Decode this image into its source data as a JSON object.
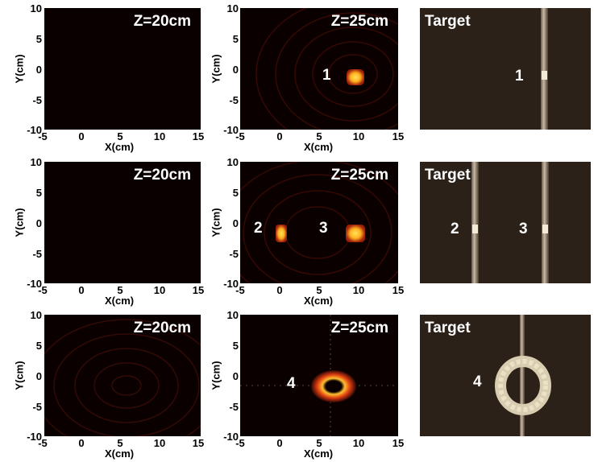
{
  "rows": [
    {
      "panels": [
        {
          "title": "Z=20cm",
          "xlabel": "X(cm)",
          "ylabel": "Y(cm)",
          "xticks": [
            "-5",
            "0",
            "5",
            "10",
            "15"
          ],
          "yticks": [
            "10",
            "5",
            "0",
            "-5",
            "-10"
          ],
          "markers": []
        },
        {
          "title": "Z=25cm",
          "xlabel": "X(cm)",
          "ylabel": "Y(cm)",
          "xticks": [
            "-5",
            "0",
            "5",
            "10",
            "15"
          ],
          "yticks": [
            "10",
            "5",
            "0",
            "-5",
            "-10"
          ],
          "markers": [
            {
              "label": "1"
            }
          ]
        }
      ],
      "target": {
        "title": "Target",
        "markers": [
          {
            "label": "1"
          }
        ]
      }
    },
    {
      "panels": [
        {
          "title": "Z=20cm",
          "xlabel": "X(cm)",
          "ylabel": "Y(cm)",
          "xticks": [
            "-5",
            "0",
            "5",
            "10",
            "15"
          ],
          "yticks": [
            "10",
            "5",
            "0",
            "-5",
            "-10"
          ],
          "markers": []
        },
        {
          "title": "Z=25cm",
          "xlabel": "X(cm)",
          "ylabel": "Y(cm)",
          "xticks": [
            "-5",
            "0",
            "5",
            "10",
            "15"
          ],
          "yticks": [
            "10",
            "5",
            "0",
            "-5",
            "-10"
          ],
          "markers": [
            {
              "label": "2"
            },
            {
              "label": "3"
            }
          ]
        }
      ],
      "target": {
        "title": "Target",
        "markers": [
          {
            "label": "2"
          },
          {
            "label": "3"
          }
        ]
      }
    },
    {
      "panels": [
        {
          "title": "Z=20cm",
          "xlabel": "X(cm)",
          "ylabel": "Y(cm)",
          "xticks": [
            "-5",
            "0",
            "5",
            "10",
            "15"
          ],
          "yticks": [
            "10",
            "5",
            "0",
            "-5",
            "-10"
          ],
          "markers": []
        },
        {
          "title": "Z=25cm",
          "xlabel": "X(cm)",
          "ylabel": "Y(cm)",
          "xticks": [
            "-5",
            "0",
            "5",
            "10",
            "15"
          ],
          "yticks": [
            "10",
            "5",
            "0",
            "-5",
            "-10"
          ],
          "markers": [
            {
              "label": "4"
            }
          ]
        }
      ],
      "target": {
        "title": "Target",
        "markers": [
          {
            "label": "4"
          }
        ]
      }
    }
  ],
  "colors": {
    "plot_background": "#0a0000",
    "hotspot_core": "#ffd23a",
    "hotspot_edge": "#c0300a",
    "target_background": "#2b2118"
  }
}
